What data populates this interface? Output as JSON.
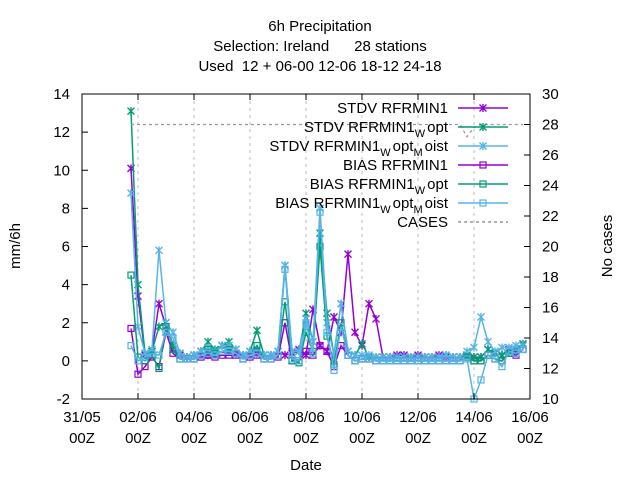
{
  "chart_data": {
    "type": "line",
    "title_lines": [
      "6h Precipitation",
      "Selection: Ireland      28 stations",
      "Used  12 + 06-00 12-06 18-12 24-18"
    ],
    "xlabel": "Date",
    "ylabel": "mm/6h",
    "y2label": "No cases",
    "xlim": [
      "2024-05-31 00:00",
      "2024-06-16 00:00"
    ],
    "ylim": [
      -2,
      14
    ],
    "y2lim": [
      10,
      30
    ],
    "x_tick_labels": [
      [
        "31/05",
        "00Z"
      ],
      [
        "02/06",
        "00Z"
      ],
      [
        "04/06",
        "00Z"
      ],
      [
        "06/06",
        "00Z"
      ],
      [
        "08/06",
        "00Z"
      ],
      [
        "10/06",
        "00Z"
      ],
      [
        "12/06",
        "00Z"
      ],
      [
        "14/06",
        "00Z"
      ],
      [
        "16/06",
        "00Z"
      ]
    ],
    "y_tick_labels": [
      "-2",
      "0",
      "2",
      "4",
      "6",
      "8",
      "10",
      "12",
      "14"
    ],
    "y2_tick_labels": [
      "10",
      "12",
      "14",
      "16",
      "18",
      "20",
      "22",
      "24",
      "26",
      "28",
      "30"
    ],
    "grid": "dashed grey verticals at x ticks",
    "legend_position": "top-right",
    "series": [
      {
        "name": "STDV RFRMIN1",
        "name_sub": "",
        "name_tail": "",
        "color": "#9400d3",
        "marker": "star",
        "axis": "y1",
        "values": [
          10.1,
          3.4,
          0.3,
          0.5,
          3.0,
          1.8,
          0.6,
          0.3,
          0.2,
          0.3,
          0.5,
          0.3,
          0.5,
          0.8,
          0.5,
          0.4,
          0.3,
          0.5,
          0.4,
          0.3,
          0.3,
          0.5,
          0.3,
          0.4,
          0.6,
          0.3,
          2.7,
          0.8,
          0.5,
          2.3,
          1.5,
          5.6,
          1.5,
          0.8,
          3.0,
          2.2,
          0.2,
          0.2,
          0.3,
          0.3,
          0.2,
          0.3,
          0.2,
          0.2,
          0.3,
          0.2,
          0.2,
          0.2,
          0.3,
          0.2,
          0.2,
          0.6,
          0.4,
          0.3,
          0.6,
          0.6,
          0.8
        ]
      },
      {
        "name": "STDV RFRMIN1",
        "name_sub": "W",
        "name_tail": "opt",
        "color": "#009e73",
        "marker": "star",
        "axis": "y1",
        "values": [
          13.1,
          4.0,
          0.4,
          0.5,
          1.8,
          2.0,
          0.8,
          0.4,
          0.2,
          0.3,
          0.5,
          1.0,
          0.6,
          0.8,
          1.0,
          0.6,
          0.3,
          0.5,
          1.6,
          0.3,
          0.3,
          0.5,
          5.0,
          0.5,
          0.5,
          2.5,
          1.0,
          6.7,
          2.5,
          0.3,
          3.0,
          0.5,
          0.3,
          0.9,
          0.2,
          0.2,
          0.2,
          0.2,
          0.2,
          0.2,
          0.2,
          0.2,
          0.2,
          0.2,
          0.2,
          0.3,
          0.2,
          0.2,
          0.3,
          0.2,
          0.2,
          0.6,
          0.4,
          0.3,
          0.5,
          0.6,
          0.9
        ]
      },
      {
        "name": "STDV RFRMIN1",
        "name_sub": "W",
        "name_tail": "opt",
        "name_sub2": "M",
        "name_tail2": "oist",
        "color": "#56b4e9",
        "marker": "star",
        "axis": "y1",
        "values": [
          8.8,
          1.8,
          0.4,
          0.6,
          5.8,
          2.0,
          1.5,
          0.4,
          0.2,
          0.3,
          0.5,
          0.7,
          0.5,
          0.8,
          0.8,
          0.6,
          0.3,
          0.5,
          0.6,
          0.3,
          0.3,
          0.5,
          5.0,
          0.5,
          0.5,
          2.2,
          1.0,
          8.0,
          2.0,
          0.3,
          3.0,
          0.5,
          0.3,
          0.3,
          0.3,
          0.2,
          0.2,
          0.2,
          0.2,
          0.2,
          0.2,
          0.2,
          0.2,
          0.2,
          0.2,
          0.3,
          0.2,
          0.2,
          0.5,
          0.7,
          2.3,
          1.0,
          0.5,
          0.7,
          0.7,
          0.8,
          0.8
        ]
      },
      {
        "name": "BIAS RFRMIN1",
        "name_sub": "",
        "name_tail": "",
        "color": "#9400d3",
        "marker": "square",
        "axis": "y1",
        "values": [
          1.7,
          -0.7,
          -0.3,
          0.2,
          -0.3,
          1.5,
          0.4,
          0.1,
          0.1,
          0.1,
          0.2,
          0.3,
          0.2,
          0.3,
          0.3,
          0.3,
          0.1,
          0.2,
          0.3,
          0.1,
          0.1,
          0.2,
          2.0,
          0.0,
          0.0,
          0.5,
          0.3,
          0.8,
          0.5,
          -0.3,
          0.8,
          0.3,
          0.0,
          0.1,
          0.1,
          0.0,
          0.0,
          0.0,
          0.0,
          0.0,
          0.0,
          0.0,
          0.0,
          0.0,
          0.0,
          0.0,
          0.0,
          0.0,
          0.2,
          0.0,
          0.0,
          0.3,
          0.1,
          0.0,
          0.4,
          0.3,
          0.6
        ]
      },
      {
        "name": "BIAS RFRMIN1",
        "name_sub": "W",
        "name_tail": "opt",
        "color": "#009e73",
        "marker": "square",
        "axis": "y1",
        "values": [
          4.5,
          0.2,
          0.0,
          0.3,
          -0.4,
          1.8,
          0.6,
          0.1,
          0.1,
          0.1,
          0.3,
          0.6,
          0.4,
          0.5,
          0.6,
          0.4,
          0.1,
          0.3,
          0.8,
          0.1,
          0.1,
          0.3,
          3.1,
          0.0,
          -0.1,
          1.5,
          0.5,
          6.0,
          1.3,
          -0.2,
          2.0,
          0.3,
          0.0,
          0.1,
          0.1,
          0.0,
          0.0,
          0.0,
          0.0,
          0.0,
          0.0,
          0.0,
          0.0,
          0.0,
          0.0,
          0.0,
          0.0,
          0.0,
          0.2,
          0.0,
          0.0,
          0.3,
          0.1,
          0.0,
          0.4,
          0.4,
          0.6
        ]
      },
      {
        "name": "BIAS RFRMIN1",
        "name_sub": "W",
        "name_tail": "opt",
        "name_sub2": "M",
        "name_tail2": "oist",
        "color": "#56b4e9",
        "marker": "square",
        "axis": "y1",
        "values": [
          0.8,
          0.0,
          0.2,
          0.4,
          0.3,
          1.5,
          1.2,
          0.1,
          0.1,
          0.1,
          0.3,
          0.4,
          0.3,
          0.5,
          0.5,
          0.4,
          0.1,
          0.3,
          0.4,
          0.1,
          0.1,
          0.3,
          4.8,
          0.1,
          0.0,
          2.0,
          0.4,
          7.8,
          1.5,
          -0.5,
          1.8,
          0.3,
          0.0,
          0.1,
          0.1,
          0.0,
          0.0,
          0.0,
          0.0,
          0.0,
          0.0,
          0.0,
          0.0,
          0.0,
          0.0,
          0.0,
          0.0,
          0.0,
          0.1,
          -2.0,
          -1.0,
          0.3,
          0.1,
          -0.3,
          0.5,
          0.4,
          0.6
        ]
      },
      {
        "name": "CASES",
        "name_sub": "",
        "name_tail": "",
        "color": "#999999",
        "marker": "none",
        "dashed": true,
        "axis": "y2",
        "values": [
          28,
          28,
          28,
          28,
          28,
          28,
          28,
          28,
          28,
          28,
          28,
          28,
          28,
          28,
          28,
          28,
          28,
          28,
          28,
          28,
          28,
          28,
          28,
          28,
          28,
          28,
          28,
          28,
          28,
          28,
          28,
          28,
          28,
          28,
          28,
          28,
          28,
          28,
          28,
          28,
          28,
          28,
          28,
          28,
          28,
          28,
          28,
          28,
          27.2,
          27.8,
          28,
          28,
          28,
          28,
          28,
          28,
          28
        ]
      }
    ],
    "x_start": "2024-06-01 18:00",
    "x_step_hours": 6
  }
}
